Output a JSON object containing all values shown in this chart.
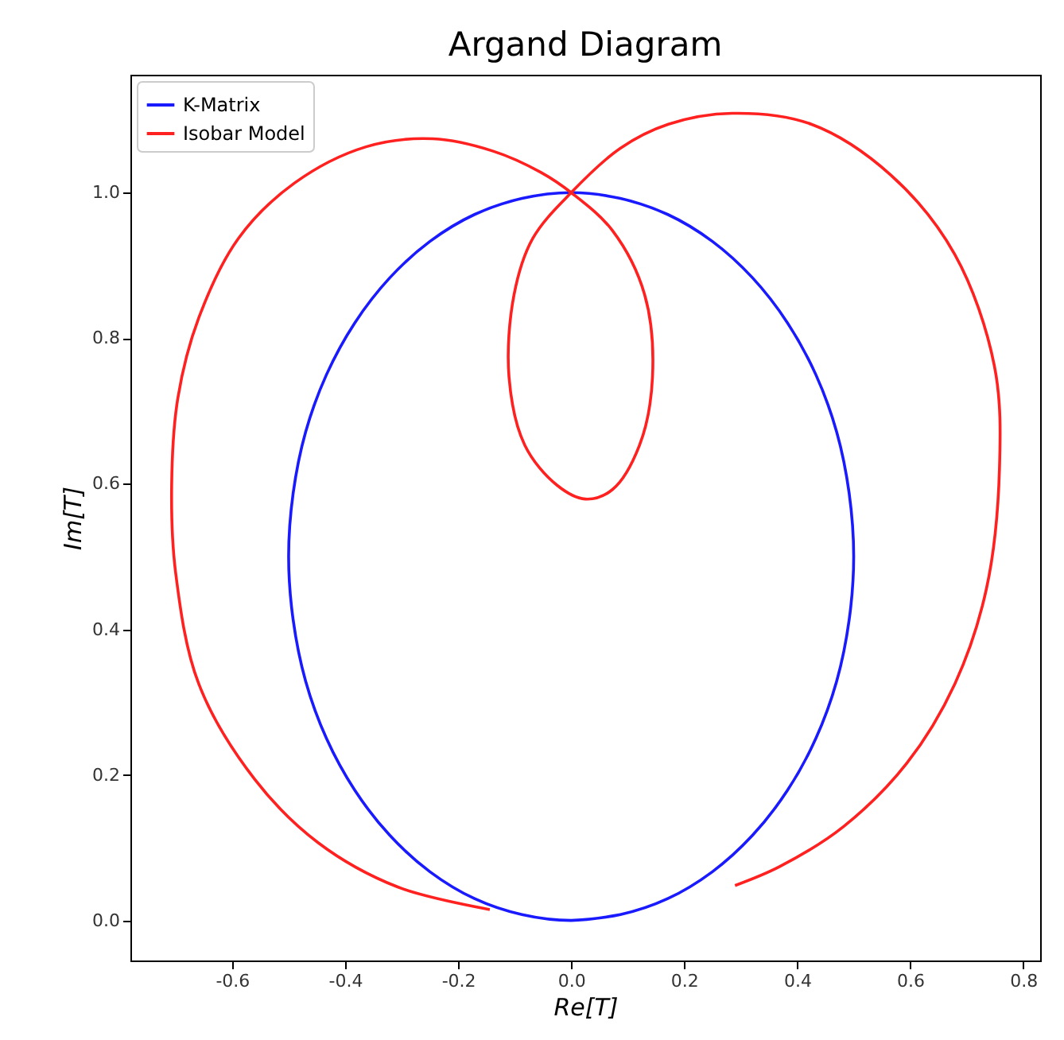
{
  "chart_data": {
    "type": "line",
    "title": "Argand Diagram",
    "xlabel": "Re[T]",
    "ylabel": "Im[T]",
    "xlim": [
      -0.78,
      0.83
    ],
    "ylim": [
      -0.055,
      1.162
    ],
    "xticks": [
      -0.6,
      -0.4,
      -0.2,
      {
        "value": 0,
        "label": "0.0"
      },
      0.2,
      0.4,
      0.6,
      0.8
    ],
    "yticks": [
      {
        "value": 0,
        "label": "0.0"
      },
      0.2,
      0.4,
      0.6,
      0.8,
      {
        "value": 1,
        "label": "1.0"
      }
    ],
    "grid": false,
    "legend": "top left",
    "series": [
      {
        "name": "K-Matrix",
        "color": "#1a1aff",
        "x": [
          0,
          0.087,
          0.171,
          0.25,
          0.321,
          0.383,
          0.433,
          0.47,
          0.492,
          0.5,
          0.492,
          0.47,
          0.433,
          0.383,
          0.321,
          0.25,
          0.171,
          0.087,
          0,
          -0.087,
          -0.171,
          -0.25,
          -0.321,
          -0.383,
          -0.433,
          -0.47,
          -0.492,
          -0.5,
          -0.492,
          -0.47,
          -0.433,
          -0.383,
          -0.321,
          -0.25,
          -0.171,
          -0.087,
          0,
          0.087
        ],
        "values": [
          0,
          0.008,
          0.03,
          0.067,
          0.117,
          0.179,
          0.25,
          0.329,
          0.413,
          0.5,
          0.587,
          0.671,
          0.75,
          0.821,
          0.883,
          0.933,
          0.97,
          0.992,
          1.0,
          0.992,
          0.97,
          0.933,
          0.883,
          0.821,
          0.75,
          0.671,
          0.587,
          0.5,
          0.413,
          0.329,
          0.25,
          0.179,
          0.117,
          0.067,
          0.03,
          0.008,
          0,
          0.008
        ]
      },
      {
        "name": "Isobar Model",
        "color": "#ff2020",
        "x": [
          -0.144,
          -0.307,
          -0.448,
          -0.56,
          -0.659,
          -0.7,
          -0.707,
          -0.696,
          -0.659,
          -0.589,
          -0.49,
          -0.363,
          -0.245,
          -0.138,
          -0.054,
          0,
          0.073,
          0.13,
          0.144,
          0.121,
          0.073,
          0.025,
          -0.025,
          -0.082,
          -0.11,
          -0.101,
          -0.068,
          0,
          0.087,
          0.172,
          0.285,
          0.425,
          0.566,
          0.679,
          0.749,
          0.758,
          0.735,
          0.679,
          0.594,
          0.482,
          0.369,
          0.29
        ],
        "values": [
          0.015,
          0.046,
          0.107,
          0.194,
          0.325,
          0.478,
          0.598,
          0.718,
          0.828,
          0.937,
          1.013,
          1.063,
          1.074,
          1.057,
          1.028,
          1.0,
          0.948,
          0.86,
          0.747,
          0.653,
          0.592,
          0.579,
          0.598,
          0.653,
          0.747,
          0.86,
          0.937,
          1.0,
          1.061,
          1.094,
          1.109,
          1.094,
          1.024,
          0.915,
          0.762,
          0.62,
          0.456,
          0.325,
          0.216,
          0.129,
          0.074,
          0.048
        ]
      }
    ]
  }
}
